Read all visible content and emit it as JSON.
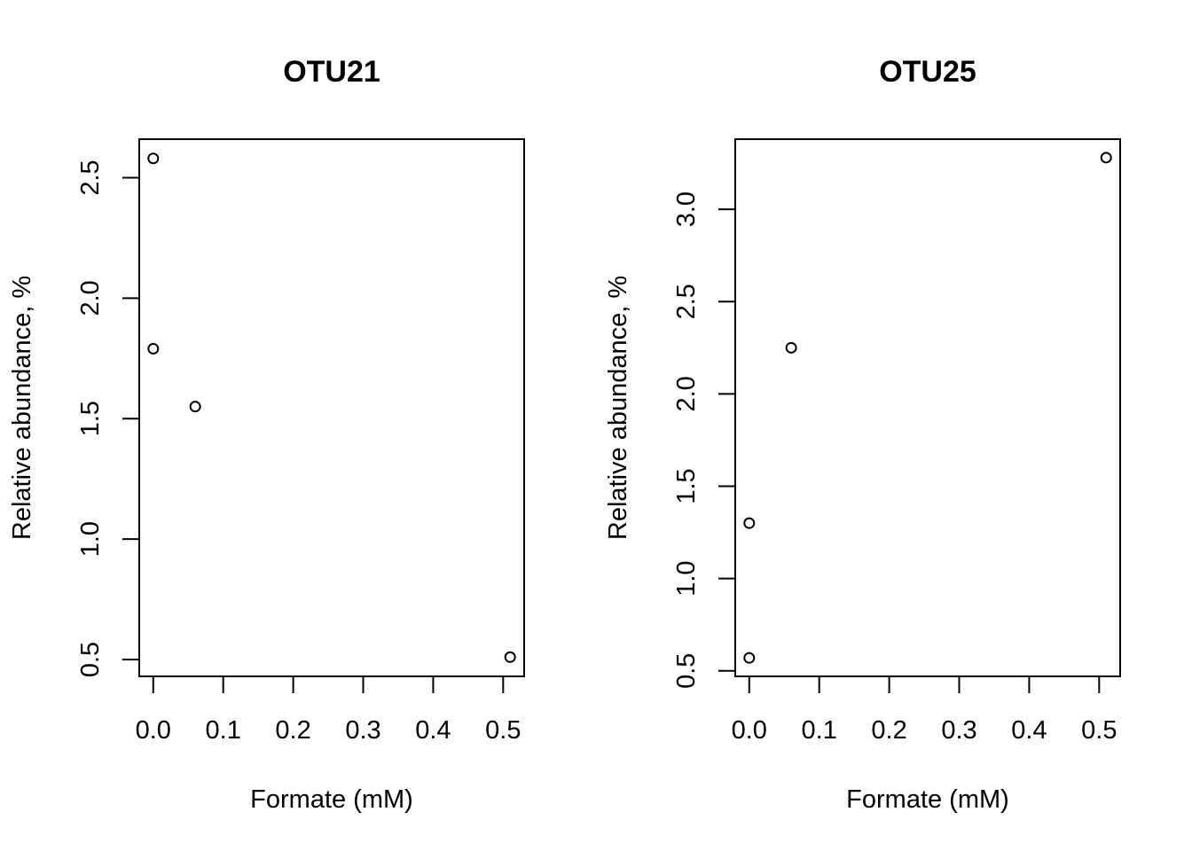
{
  "chart_data": [
    {
      "type": "scatter",
      "title": "OTU21",
      "xlabel": "Formate (mM)",
      "ylabel": "Relative abundance, %",
      "xlim": [
        -0.02,
        0.53
      ],
      "ylim": [
        0.43,
        2.66
      ],
      "xticks": [
        "0.0",
        "0.1",
        "0.2",
        "0.3",
        "0.4",
        "0.5"
      ],
      "xtick_values": [
        0.0,
        0.1,
        0.2,
        0.3,
        0.4,
        0.5
      ],
      "yticks": [
        "0.5",
        "1.0",
        "1.5",
        "2.0",
        "2.5"
      ],
      "ytick_values": [
        0.5,
        1.0,
        1.5,
        2.0,
        2.5
      ],
      "grid": false,
      "marker": "open-circle",
      "points": [
        {
          "x": 0.0,
          "y": 2.58
        },
        {
          "x": 0.0,
          "y": 1.79
        },
        {
          "x": 0.06,
          "y": 1.55
        },
        {
          "x": 0.51,
          "y": 0.51
        }
      ]
    },
    {
      "type": "scatter",
      "title": "OTU25",
      "xlabel": "Formate (mM)",
      "ylabel": "Relative abundance, %",
      "xlim": [
        -0.02,
        0.53
      ],
      "ylim": [
        0.47,
        3.38
      ],
      "xticks": [
        "0.0",
        "0.1",
        "0.2",
        "0.3",
        "0.4",
        "0.5"
      ],
      "xtick_values": [
        0.0,
        0.1,
        0.2,
        0.3,
        0.4,
        0.5
      ],
      "yticks": [
        "0.5",
        "1.0",
        "1.5",
        "2.0",
        "2.5",
        "3.0"
      ],
      "ytick_values": [
        0.5,
        1.0,
        1.5,
        2.0,
        2.5,
        3.0
      ],
      "grid": false,
      "marker": "open-circle",
      "points": [
        {
          "x": 0.0,
          "y": 1.3
        },
        {
          "x": 0.0,
          "y": 0.57
        },
        {
          "x": 0.06,
          "y": 2.25
        },
        {
          "x": 0.51,
          "y": 3.28
        }
      ]
    }
  ]
}
